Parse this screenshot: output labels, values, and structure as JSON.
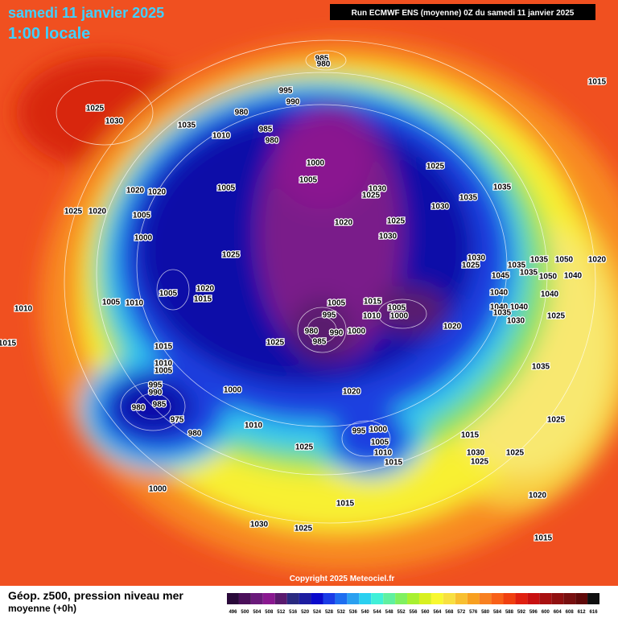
{
  "header": {
    "date": "samedi 11 janvier 2025",
    "time": "1:00 locale",
    "run": "Run ECMWF ENS (moyenne) 0Z du samedi 11 janvier 2025"
  },
  "footer": {
    "title": "Géop. z500, pression niveau mer",
    "subtitle": "moyenne  (+0h)",
    "copyright": "Copyright 2025 Meteociel.fr"
  },
  "legend": {
    "labels": [
      "496",
      "500",
      "504",
      "508",
      "512",
      "516",
      "520",
      "524",
      "528",
      "532",
      "536",
      "540",
      "544",
      "548",
      "552",
      "556",
      "560",
      "564",
      "568",
      "572",
      "576",
      "580",
      "584",
      "588",
      "592",
      "596",
      "600",
      "604",
      "608",
      "612",
      "616"
    ],
    "colors": [
      "#2a0a3a",
      "#4b0f5a",
      "#6a1a7a",
      "#8a1890",
      "#5a1a6e",
      "#2a2a80",
      "#1c1ca0",
      "#0a0acc",
      "#1a3ce6",
      "#1e6ef0",
      "#2aa0f0",
      "#2ad0f0",
      "#40f0d8",
      "#60f0a0",
      "#80f060",
      "#a8f030",
      "#d8f020",
      "#f8f830",
      "#f8e040",
      "#f8c030",
      "#f8a020",
      "#f88020",
      "#f86018",
      "#f04010",
      "#e02010",
      "#c81010",
      "#a81010",
      "#901010",
      "#781010",
      "#600a0a",
      "#101010"
    ]
  },
  "isobar_labels": [
    "1015",
    "1025",
    "1030",
    "1035",
    "1010",
    "985",
    "980",
    "995",
    "990",
    "980",
    "985",
    "980",
    "1000",
    "1005",
    "1025",
    "1020",
    "1020",
    "1005",
    "1030",
    "1025",
    "1035",
    "1035",
    "1025",
    "1020",
    "1005",
    "1030",
    "1020",
    "1025",
    "1000",
    "1030",
    "1025",
    "1030",
    "1025",
    "1035",
    "1035",
    "1050",
    "1020",
    "1045",
    "1035",
    "1050",
    "1040",
    "1005",
    "1020",
    "1015",
    "1010",
    "1005",
    "1010",
    "1005",
    "1015",
    "1005",
    "1000",
    "1040",
    "1040",
    "995",
    "1010",
    "980",
    "990",
    "1000",
    "985",
    "1040",
    "1040",
    "1035",
    "1025",
    "1030",
    "1020",
    "1025",
    "1015",
    "1015",
    "1010",
    "1005",
    "1035",
    "995",
    "990",
    "1000",
    "1020",
    "985",
    "980",
    "975",
    "1010",
    "995",
    "1000",
    "980",
    "1005",
    "1015",
    "1025",
    "1010",
    "1015",
    "1030",
    "1025",
    "1025",
    "1025",
    "1000",
    "1015",
    "1020",
    "1030",
    "1025",
    "1015"
  ]
}
